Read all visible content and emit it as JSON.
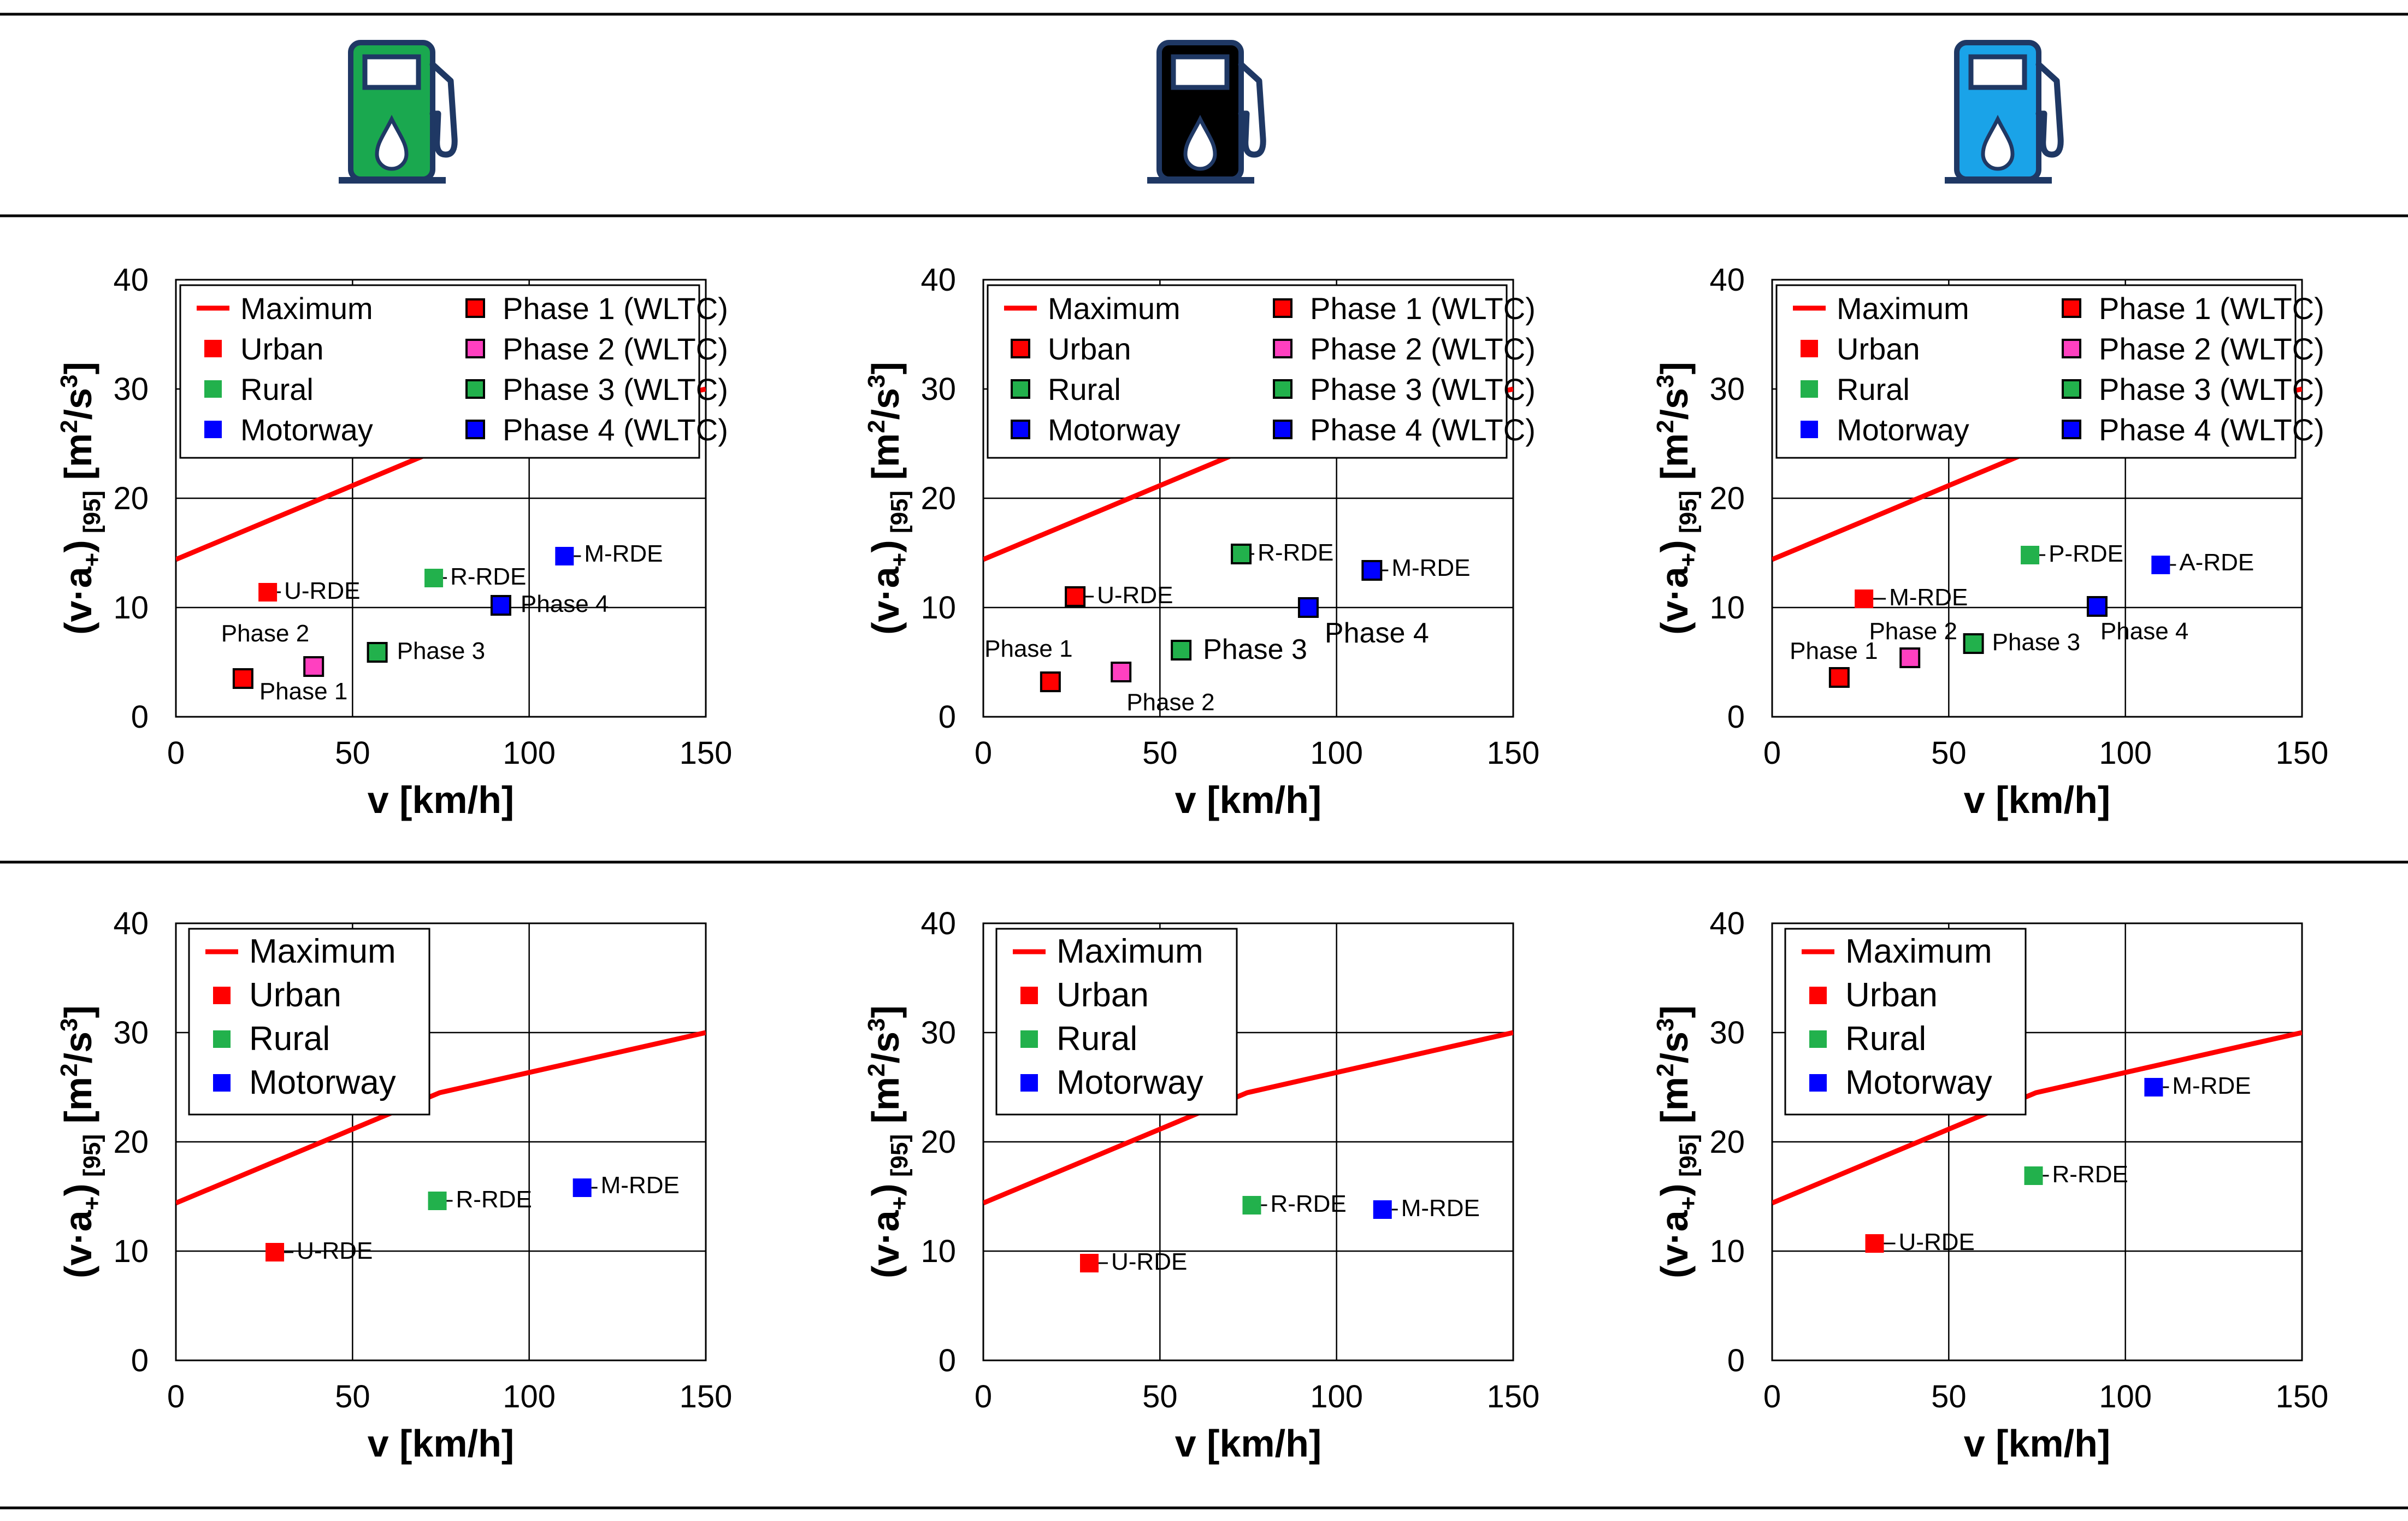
{
  "figure": {
    "pump_icons": [
      {
        "name": "green-fuel-pump-icon",
        "color": "#1aa84f"
      },
      {
        "name": "black-fuel-pump-icon",
        "color": "#000000"
      },
      {
        "name": "blue-fuel-pump-icon",
        "color": "#1aa3e8"
      }
    ],
    "line_color": "#000000",
    "icon_outline_color": "#1f3864"
  },
  "chart_data": [
    {
      "id": "top-left",
      "type": "scatter",
      "xlabel": "v [km/h]",
      "ylabel_main": "(v·a",
      "ylabel_sub": "+",
      "ylabel_close": ")",
      "ylabel_sub2": "[95]",
      "ylabel_unit": "[m",
      "ylabel_unit_sup": "2",
      "ylabel_unit_mid": "/s",
      "ylabel_unit_sup2": "3",
      "ylabel_unit_end": "]",
      "xlim": [
        0,
        150
      ],
      "ylim": [
        0,
        40
      ],
      "x_ticks": [
        "0",
        "50",
        "100",
        "150"
      ],
      "y_ticks": [
        "0",
        "10",
        "20",
        "30",
        "40"
      ],
      "grid": true,
      "maximum_line": {
        "name": "Maximum",
        "color": "#ff0000",
        "x": [
          0,
          74.7,
          150
        ],
        "y": [
          14.4,
          24.5,
          30
        ]
      },
      "legend": [
        {
          "label": "Maximum",
          "kind": "line",
          "color": "#ff0000"
        },
        {
          "label": "Urban",
          "kind": "square",
          "color": "#ff0000"
        },
        {
          "label": "Rural",
          "kind": "square",
          "color": "#22b14c"
        },
        {
          "label": "Motorway",
          "kind": "square",
          "color": "#0000ff"
        },
        {
          "label": "Phase 1 (WLTC)",
          "kind": "square-outlined",
          "color": "#ff0000"
        },
        {
          "label": "Phase 2 (WLTC)",
          "kind": "square-outlined",
          "color": "#ff40c0"
        },
        {
          "label": "Phase 3 (WLTC)",
          "kind": "square-outlined",
          "color": "#22b14c"
        },
        {
          "label": "Phase 4 (WLTC)",
          "kind": "square-outlined",
          "color": "#0000ff"
        }
      ],
      "points": [
        {
          "label": "U-RDE",
          "x": 26,
          "y": 11.4,
          "color": "#ff0000",
          "outlined": false
        },
        {
          "label": "R-RDE",
          "x": 73,
          "y": 12.7,
          "color": "#22b14c",
          "outlined": false
        },
        {
          "label": "M-RDE",
          "x": 110,
          "y": 14.7,
          "color": "#0000ff",
          "outlined": false
        },
        {
          "label": "Phase 1",
          "x": 19,
          "y": 3.5,
          "color": "#ff0000",
          "outlined": true
        },
        {
          "label": "Phase 2",
          "x": 39,
          "y": 4.6,
          "color": "#ff40c0",
          "outlined": true
        },
        {
          "label": "Phase 3",
          "x": 57,
          "y": 5.9,
          "color": "#22b14c",
          "outlined": true
        },
        {
          "label": "Phase 4",
          "x": 92,
          "y": 10.2,
          "color": "#0000ff",
          "outlined": true
        }
      ]
    },
    {
      "id": "top-middle",
      "type": "scatter",
      "xlabel": "v [km/h]",
      "ylabel_main": "(v·a",
      "ylabel_sub": "+",
      "ylabel_close": ")",
      "ylabel_sub2": "[95]",
      "ylabel_unit": "[m",
      "ylabel_unit_sup": "2",
      "ylabel_unit_mid": "/s",
      "ylabel_unit_sup2": "3",
      "ylabel_unit_end": "]",
      "xlim": [
        0,
        150
      ],
      "ylim": [
        0,
        40
      ],
      "x_ticks": [
        "0",
        "50",
        "100",
        "150"
      ],
      "y_ticks": [
        "0",
        "10",
        "20",
        "30",
        "40"
      ],
      "grid": true,
      "maximum_line": {
        "name": "Maximum",
        "color": "#ff0000",
        "x": [
          0,
          74.7,
          150
        ],
        "y": [
          14.4,
          24.5,
          30
        ]
      },
      "legend": [
        {
          "label": "Maximum",
          "kind": "line",
          "color": "#ff0000"
        },
        {
          "label": "Urban",
          "kind": "square-outlined",
          "color": "#ff0000"
        },
        {
          "label": "Rural",
          "kind": "square-outlined",
          "color": "#22b14c"
        },
        {
          "label": "Motorway",
          "kind": "square-outlined",
          "color": "#0000ff"
        },
        {
          "label": "Phase 1 (WLTC)",
          "kind": "square-outlined",
          "color": "#ff0000"
        },
        {
          "label": "Phase 2 (WLTC)",
          "kind": "square-outlined",
          "color": "#ff40c0"
        },
        {
          "label": "Phase 3 (WLTC)",
          "kind": "square-outlined",
          "color": "#22b14c"
        },
        {
          "label": "Phase 4 (WLTC)",
          "kind": "square-outlined",
          "color": "#0000ff"
        }
      ],
      "points": [
        {
          "label": "U-RDE",
          "x": 26,
          "y": 11,
          "color": "#ff0000",
          "outlined": true
        },
        {
          "label": "R-RDE",
          "x": 73,
          "y": 14.9,
          "color": "#22b14c",
          "outlined": true
        },
        {
          "label": "M-RDE",
          "x": 110,
          "y": 13.4,
          "color": "#0000ff",
          "outlined": true
        },
        {
          "label": "Phase 1",
          "x": 19,
          "y": 3.2,
          "color": "#ff0000",
          "outlined": true
        },
        {
          "label": "Phase 2",
          "x": 39,
          "y": 4.1,
          "color": "#ff40c0",
          "outlined": true
        },
        {
          "label": "Phase 3",
          "x": 56,
          "y": 6.1,
          "color": "#22b14c",
          "outlined": true
        },
        {
          "label": "Phase 4",
          "x": 92,
          "y": 10,
          "color": "#0000ff",
          "outlined": true
        }
      ]
    },
    {
      "id": "top-right",
      "type": "scatter",
      "xlabel": "v [km/h]",
      "ylabel_main": "(v·a",
      "ylabel_sub": "+",
      "ylabel_close": ")",
      "ylabel_sub2": "[95]",
      "ylabel_unit": "[m",
      "ylabel_unit_sup": "2",
      "ylabel_unit_mid": "/s",
      "ylabel_unit_sup2": "3",
      "ylabel_unit_end": "]",
      "xlim": [
        0,
        150
      ],
      "ylim": [
        0,
        40
      ],
      "x_ticks": [
        "0",
        "50",
        "100",
        "150"
      ],
      "y_ticks": [
        "0",
        "10",
        "20",
        "30",
        "40"
      ],
      "grid": true,
      "maximum_line": {
        "name": "Maximum",
        "color": "#ff0000",
        "x": [
          0,
          74.7,
          150
        ],
        "y": [
          14.4,
          24.5,
          30
        ]
      },
      "legend": [
        {
          "label": "Maximum",
          "kind": "line",
          "color": "#ff0000"
        },
        {
          "label": "Urban",
          "kind": "square",
          "color": "#ff0000"
        },
        {
          "label": "Rural",
          "kind": "square",
          "color": "#22b14c"
        },
        {
          "label": "Motorway",
          "kind": "square",
          "color": "#0000ff"
        },
        {
          "label": "Phase 1 (WLTC)",
          "kind": "square-outlined",
          "color": "#ff0000"
        },
        {
          "label": "Phase 2 (WLTC)",
          "kind": "square-outlined",
          "color": "#ff40c0"
        },
        {
          "label": "Phase 3 (WLTC)",
          "kind": "square-outlined",
          "color": "#22b14c"
        },
        {
          "label": "Phase 4 (WLTC)",
          "kind": "square-outlined",
          "color": "#0000ff"
        }
      ],
      "points": [
        {
          "label": "M-RDE",
          "x": 26,
          "y": 10.8,
          "color": "#ff0000",
          "outlined": false
        },
        {
          "label": "P-RDE",
          "x": 73,
          "y": 14.8,
          "color": "#22b14c",
          "outlined": false
        },
        {
          "label": "A-RDE",
          "x": 110,
          "y": 13.9,
          "color": "#0000ff",
          "outlined": false
        },
        {
          "label": "Phase 1",
          "x": 19,
          "y": 3.6,
          "color": "#ff0000",
          "outlined": true
        },
        {
          "label": "Phase 2",
          "x": 39,
          "y": 5.4,
          "color": "#ff40c0",
          "outlined": true
        },
        {
          "label": "Phase 3",
          "x": 57,
          "y": 6.7,
          "color": "#22b14c",
          "outlined": true
        },
        {
          "label": "Phase 4",
          "x": 92,
          "y": 10.1,
          "color": "#0000ff",
          "outlined": true
        }
      ]
    },
    {
      "id": "bottom-left",
      "type": "scatter",
      "xlabel": "v [km/h]",
      "ylabel_main": "(v·a",
      "ylabel_sub": "+",
      "ylabel_close": ")",
      "ylabel_sub2": "[95]",
      "ylabel_unit": "[m",
      "ylabel_unit_sup": "2",
      "ylabel_unit_mid": "/s",
      "ylabel_unit_sup2": "3",
      "ylabel_unit_end": "]",
      "xlim": [
        0,
        150
      ],
      "ylim": [
        0,
        40
      ],
      "x_ticks": [
        "0",
        "50",
        "100",
        "150"
      ],
      "y_ticks": [
        "0",
        "10",
        "20",
        "30",
        "40"
      ],
      "grid": true,
      "maximum_line": {
        "name": "Maximum",
        "color": "#ff0000",
        "x": [
          0,
          74.7,
          150
        ],
        "y": [
          14.4,
          24.5,
          30
        ]
      },
      "legend": [
        {
          "label": "Maximum",
          "kind": "line",
          "color": "#ff0000"
        },
        {
          "label": "Urban",
          "kind": "square",
          "color": "#ff0000"
        },
        {
          "label": "Rural",
          "kind": "square",
          "color": "#22b14c"
        },
        {
          "label": "Motorway",
          "kind": "square",
          "color": "#0000ff"
        }
      ],
      "points": [
        {
          "label": "U-RDE",
          "x": 28,
          "y": 9.9,
          "color": "#ff0000",
          "outlined": false
        },
        {
          "label": "R-RDE",
          "x": 74,
          "y": 14.6,
          "color": "#22b14c",
          "outlined": false
        },
        {
          "label": "M-RDE",
          "x": 115,
          "y": 15.8,
          "color": "#0000ff",
          "outlined": false
        }
      ]
    },
    {
      "id": "bottom-middle",
      "type": "scatter",
      "xlabel": "v [km/h]",
      "ylabel_main": "(v·a",
      "ylabel_sub": "+",
      "ylabel_close": ")",
      "ylabel_sub2": "[95]",
      "ylabel_unit": "[m",
      "ylabel_unit_sup": "2",
      "ylabel_unit_mid": "/s",
      "ylabel_unit_sup2": "3",
      "ylabel_unit_end": "]",
      "xlim": [
        0,
        150
      ],
      "ylim": [
        0,
        40
      ],
      "x_ticks": [
        "0",
        "50",
        "100",
        "150"
      ],
      "y_ticks": [
        "0",
        "10",
        "20",
        "30",
        "40"
      ],
      "grid": true,
      "maximum_line": {
        "name": "Maximum",
        "color": "#ff0000",
        "x": [
          0,
          74.7,
          150
        ],
        "y": [
          14.4,
          24.5,
          30
        ]
      },
      "legend": [
        {
          "label": "Maximum",
          "kind": "line",
          "color": "#ff0000"
        },
        {
          "label": "Urban",
          "kind": "square",
          "color": "#ff0000"
        },
        {
          "label": "Rural",
          "kind": "square",
          "color": "#22b14c"
        },
        {
          "label": "Motorway",
          "kind": "square",
          "color": "#0000ff"
        }
      ],
      "points": [
        {
          "label": "U-RDE",
          "x": 30,
          "y": 8.9,
          "color": "#ff0000",
          "outlined": false
        },
        {
          "label": "R-RDE",
          "x": 76,
          "y": 14.2,
          "color": "#22b14c",
          "outlined": false
        },
        {
          "label": "M-RDE",
          "x": 113,
          "y": 13.8,
          "color": "#0000ff",
          "outlined": false
        }
      ]
    },
    {
      "id": "bottom-right",
      "type": "scatter",
      "xlabel": "v [km/h]",
      "ylabel_main": "(v·a",
      "ylabel_sub": "+",
      "ylabel_close": ")",
      "ylabel_sub2": "[95]",
      "ylabel_unit": "[m",
      "ylabel_unit_sup": "2",
      "ylabel_unit_mid": "/s",
      "ylabel_unit_sup2": "3",
      "ylabel_unit_end": "]",
      "xlim": [
        0,
        150
      ],
      "ylim": [
        0,
        40
      ],
      "x_ticks": [
        "0",
        "50",
        "100",
        "150"
      ],
      "y_ticks": [
        "0",
        "10",
        "20",
        "30",
        "40"
      ],
      "grid": true,
      "maximum_line": {
        "name": "Maximum",
        "color": "#ff0000",
        "x": [
          0,
          74.7,
          150
        ],
        "y": [
          14.4,
          24.5,
          30
        ]
      },
      "legend": [
        {
          "label": "Maximum",
          "kind": "line",
          "color": "#ff0000"
        },
        {
          "label": "Urban",
          "kind": "square",
          "color": "#ff0000"
        },
        {
          "label": "Rural",
          "kind": "square",
          "color": "#22b14c"
        },
        {
          "label": "Motorway",
          "kind": "square",
          "color": "#0000ff"
        }
      ],
      "points": [
        {
          "label": "U-RDE",
          "x": 29,
          "y": 10.7,
          "color": "#ff0000",
          "outlined": false
        },
        {
          "label": "R-RDE",
          "x": 74,
          "y": 16.9,
          "color": "#22b14c",
          "outlined": false
        },
        {
          "label": "M-RDE",
          "x": 108,
          "y": 25,
          "color": "#0000ff",
          "outlined": false
        }
      ]
    }
  ]
}
